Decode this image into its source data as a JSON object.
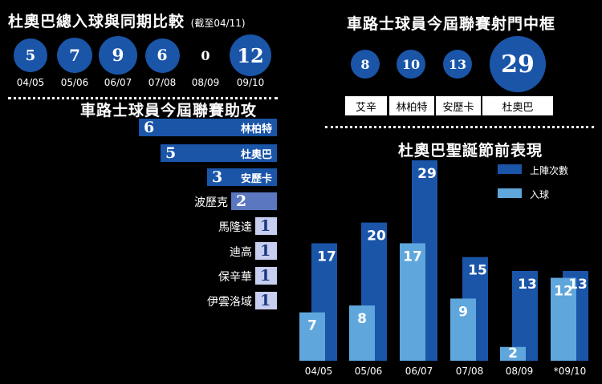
{
  "colors": {
    "dark_blue": "#1a55a8",
    "light_blue": "#5fa6dc",
    "assist_mid": "#5a77c0",
    "assist_pale": "#c8cef0"
  },
  "goals_compare": {
    "title": "杜奧巴總入球與同期比較",
    "subtitle": "(截至04/11)",
    "items": [
      {
        "season": "04/05",
        "goals": "5",
        "circled": true
      },
      {
        "season": "05/06",
        "goals": "7",
        "circled": true
      },
      {
        "season": "06/07",
        "goals": "9",
        "circled": true
      },
      {
        "season": "07/08",
        "goals": "6",
        "circled": true
      },
      {
        "season": "08/09",
        "goals": "0",
        "circled": false
      },
      {
        "season": "09/10",
        "goals": "12",
        "circled": true
      }
    ]
  },
  "shots_on_target": {
    "title": "車路士球員今屆聯賽射門中框",
    "items": [
      {
        "player": "艾辛",
        "value": "8"
      },
      {
        "player": "林柏特",
        "value": "10"
      },
      {
        "player": "安歷卡",
        "value": "13"
      },
      {
        "player": "杜奧巴",
        "value": "29"
      }
    ]
  },
  "assists": {
    "title": "車路士球員今屆聯賽助攻",
    "items": [
      {
        "player": "林柏特",
        "value": "6"
      },
      {
        "player": "杜奧巴",
        "value": "5"
      },
      {
        "player": "安歷卡",
        "value": "3"
      },
      {
        "player": "波歷克",
        "value": "2"
      },
      {
        "player": "馬隆達",
        "value": "1"
      },
      {
        "player": "迪高",
        "value": "1"
      },
      {
        "player": "保辛華",
        "value": "1"
      },
      {
        "player": "伊雲洛域",
        "value": "1"
      }
    ]
  },
  "christmas": {
    "title": "杜奧巴聖誕節前表現",
    "legend_appearances": "上陣次數",
    "legend_goals": "入球"
  },
  "chart_data": [
    {
      "type": "bar",
      "title": "杜奧巴總入球與同期比較",
      "categories": [
        "04/05",
        "05/06",
        "06/07",
        "07/08",
        "08/09",
        "09/10"
      ],
      "values": [
        5,
        7,
        9,
        6,
        0,
        12
      ]
    },
    {
      "type": "bar",
      "title": "車路士球員今屆聯賽射門中框",
      "categories": [
        "艾辛",
        "林柏特",
        "安歷卡",
        "杜奧巴"
      ],
      "values": [
        8,
        10,
        13,
        29
      ]
    },
    {
      "type": "bar",
      "title": "車路士球員今屆聯賽助攻",
      "categories": [
        "林柏特",
        "杜奧巴",
        "安歷卡",
        "波歷克",
        "馬隆達",
        "迪高",
        "保辛華",
        "伊雲洛域"
      ],
      "values": [
        6,
        5,
        3,
        2,
        1,
        1,
        1,
        1
      ]
    },
    {
      "type": "bar",
      "title": "杜奧巴聖誕節前表現",
      "categories": [
        "04/05",
        "05/06",
        "06/07",
        "07/08",
        "08/09",
        "*09/10"
      ],
      "series": [
        {
          "name": "上陣次數",
          "values": [
            17,
            20,
            29,
            15,
            13,
            13
          ]
        },
        {
          "name": "入球",
          "values": [
            7,
            8,
            17,
            9,
            2,
            12
          ]
        }
      ],
      "ylim": [
        0,
        29
      ],
      "legend": "top-right"
    }
  ]
}
